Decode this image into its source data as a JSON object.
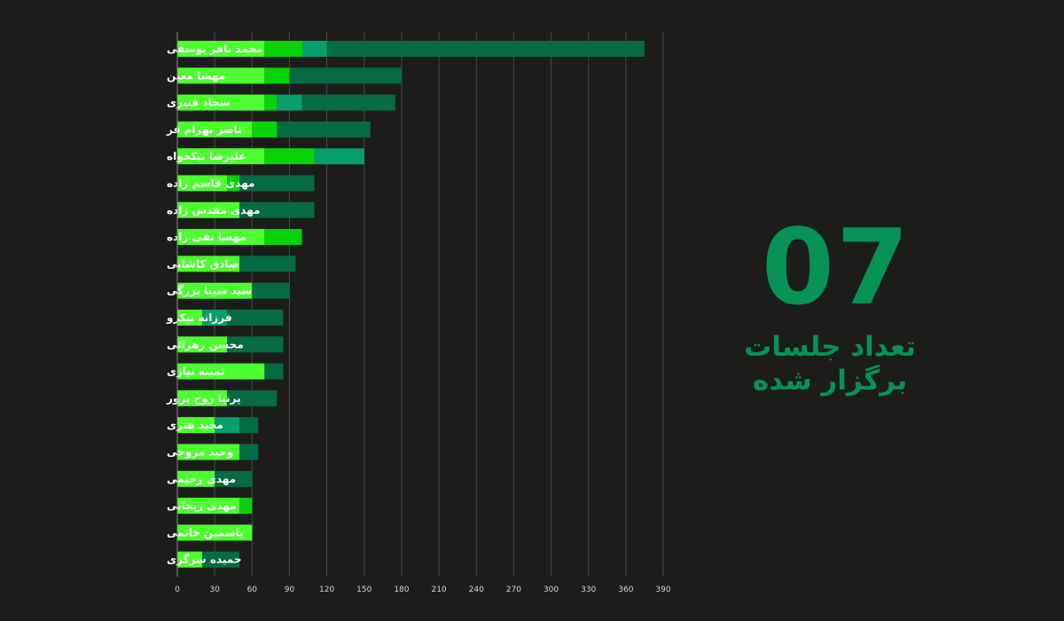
{
  "colors": {
    "background": "#1c1d1b",
    "segment_1": "#4cff2e",
    "segment_2": "#08d308",
    "segment_3": "#079e6a",
    "segment_4": "#066a43",
    "accent": "#079256",
    "grid": "#4a4a4a"
  },
  "summary": {
    "value": "07",
    "caption_line1": "تعداد جلسات",
    "caption_line2": "برگزار شده"
  },
  "chart_data": {
    "type": "bar",
    "orientation": "horizontal",
    "stacked": true,
    "grid": true,
    "xlim": [
      0,
      390
    ],
    "x_ticks": [
      0,
      30,
      60,
      90,
      120,
      150,
      180,
      210,
      240,
      270,
      300,
      330,
      360,
      390
    ],
    "categories": [
      "محمد باقر یوسفی",
      "مهسا معین",
      "سجاد قنبری",
      "ناصر بهرام فر",
      "علیرضا نیکخواه",
      "مهدی قاسم زاده",
      "مهدی مقدس زاده",
      "مهسا تقی زاده",
      "صادق کاشانی",
      "سید سینا بزرگی",
      "فرزانه نیکرو",
      "محسن زهرائی",
      "ثمینه نیازی",
      "پرنیا روح پرور",
      "مجید هنری",
      "وحید مروجی",
      "مهدی رحیمی",
      "مهدی ریحانی",
      "یاسمین خاتمی",
      "حمیده سرگزی"
    ],
    "series": [
      {
        "color": "#4cff2e",
        "values": [
          70,
          70,
          70,
          60,
          70,
          40,
          50,
          70,
          50,
          60,
          20,
          40,
          70,
          40,
          30,
          50,
          30,
          50,
          60,
          20
        ]
      },
      {
        "color": "#08d308",
        "values": [
          30,
          20,
          10,
          20,
          40,
          10,
          0,
          30,
          0,
          0,
          0,
          0,
          0,
          0,
          0,
          0,
          0,
          10,
          0,
          0
        ]
      },
      {
        "color": "#079e6a",
        "values": [
          20,
          0,
          20,
          0,
          40,
          0,
          0,
          0,
          0,
          0,
          20,
          0,
          0,
          0,
          20,
          0,
          0,
          0,
          0,
          0
        ]
      },
      {
        "color": "#066a43",
        "values": [
          255,
          90,
          75,
          75,
          0,
          60,
          60,
          0,
          45,
          30,
          45,
          45,
          15,
          40,
          15,
          15,
          30,
          0,
          0,
          30
        ]
      }
    ]
  }
}
